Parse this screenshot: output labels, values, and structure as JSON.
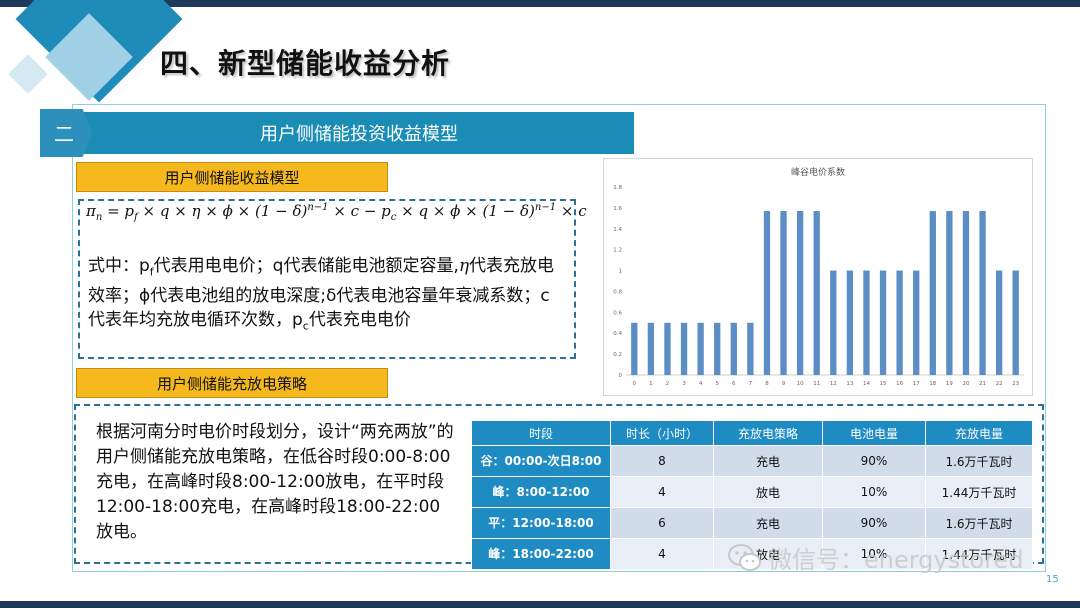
{
  "title": "四、新型储能收益分析",
  "section": {
    "number": "二",
    "banner": "用户侧储能投资收益模型"
  },
  "model_label": "用户侧储能收益模型",
  "strategy_label": "用户侧储能充放电策略",
  "description": {
    "line1": "式中：p",
    "line1_sub": "f",
    "line1_rest": "代表用电电价；q代表储能电池额定容量,",
    "eta": "η",
    "line2": "代表充放电效率；ϕ代表电池组的放电深度;δ代表电池容量年衰减系数；c代表年均充放电循环次数，",
    "line3": "p",
    "line3_sub": "c",
    "line3_rest": "代表充电电价"
  },
  "strategy_text": "根据河南分时电价时段划分，设计“两充两放”的用户侧储能充放电策略，在低谷时段0:00-8:00充电，在高峰时段8:00-12:00放电，在平时段12:00-18:00充电，在高峰时段18:00-22:00放电。",
  "table": {
    "headers": [
      "时段",
      "时长（小时）",
      "充放电策略",
      "电池电量",
      "充放电量"
    ],
    "rows": [
      [
        "谷：00:00-次日8:00",
        "8",
        "充电",
        "90%",
        "1.6万千瓦时"
      ],
      [
        "峰：8:00-12:00",
        "4",
        "放电",
        "10%",
        "1.44万千瓦时"
      ],
      [
        "平：12:00-18:00",
        "6",
        "充电",
        "90%",
        "1.6万千瓦时"
      ],
      [
        "峰：18:00-22:00",
        "4",
        "放电",
        "10%",
        "1.44万千瓦时"
      ]
    ]
  },
  "chart_data": {
    "type": "bar",
    "title": "峰谷电价系数",
    "categories": [
      "0",
      "1",
      "2",
      "3",
      "4",
      "5",
      "6",
      "7",
      "8",
      "9",
      "10",
      "11",
      "12",
      "13",
      "14",
      "15",
      "16",
      "17",
      "18",
      "19",
      "20",
      "21",
      "22",
      "23"
    ],
    "values": [
      0.5,
      0.5,
      0.5,
      0.5,
      0.5,
      0.5,
      0.5,
      0.5,
      1.57,
      1.57,
      1.57,
      1.57,
      1,
      1,
      1,
      1,
      1,
      1,
      1.57,
      1.57,
      1.57,
      1.57,
      1,
      1
    ],
    "ylim": [
      0,
      1.8
    ],
    "yticks": [
      "0",
      "0.2",
      "0.4",
      "0.6",
      "0.8",
      "1",
      "1.2",
      "1.4",
      "1.6",
      "1.8"
    ],
    "grid": false,
    "color": "#5b8ec4"
  },
  "watermark": "微信号：energystored",
  "page_number": "15",
  "colors": {
    "accent": "#1a8cb5",
    "label": "#f5b81d",
    "dark": "#1f3a5a"
  }
}
